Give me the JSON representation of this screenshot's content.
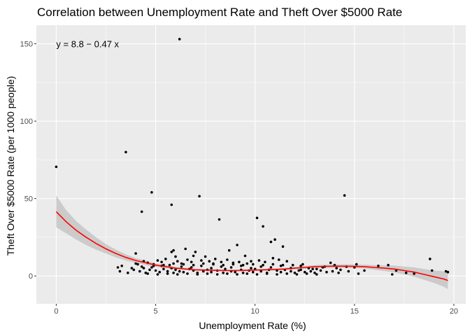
{
  "chart_data": {
    "type": "scatter",
    "title": "Correlation between Unemployment Rate and Theft Over $5000 Rate",
    "xlabel": "Unemployment Rate (%)",
    "ylabel": "Theft Over $5000 Rate (per 1000 people)",
    "xlim": [
      -1.0,
      20.6
    ],
    "ylim": [
      -18,
      162
    ],
    "x_ticks": [
      0,
      5,
      10,
      15,
      20
    ],
    "y_ticks": [
      0,
      50,
      100,
      150
    ],
    "grid": true,
    "legend": "none",
    "annotation": {
      "text": "y = 8.8 − 0.47 x",
      "x": 0,
      "y": 150
    },
    "colors": {
      "panel": "#ebebeb",
      "grid_major": "#ffffff",
      "points": "#000000",
      "smooth_line": "#ff0000",
      "ribbon": "#c0c0c0"
    },
    "smooth": {
      "x": [
        0,
        0.5,
        1,
        1.5,
        2,
        2.5,
        3,
        3.5,
        4,
        4.5,
        5,
        5.5,
        6,
        6.5,
        7,
        7.5,
        8,
        8.5,
        9,
        9.5,
        10,
        10.5,
        11,
        11.5,
        12,
        12.5,
        13,
        13.5,
        14,
        14.5,
        15,
        15.5,
        16,
        16.5,
        17,
        17.5,
        18,
        18.5,
        19,
        19.5,
        19.7
      ],
      "y": [
        41.5,
        35,
        29.5,
        25,
        21,
        17.5,
        14.5,
        12,
        10,
        8.5,
        7,
        6,
        5,
        4.5,
        4,
        3.8,
        3.6,
        3.5,
        3.5,
        3.6,
        3.8,
        4,
        4.2,
        4.5,
        5,
        5.5,
        6,
        6.2,
        6.3,
        6.3,
        6.2,
        6,
        5.5,
        5,
        4.5,
        3.5,
        2.5,
        1,
        -0.5,
        -2,
        -3
      ],
      "lower": [
        31.5,
        27.5,
        23.5,
        20,
        17,
        14.5,
        12,
        10,
        8.5,
        7,
        6,
        5,
        4.2,
        3.8,
        3.4,
        3.2,
        3,
        2.9,
        2.9,
        3,
        3.2,
        3.4,
        3.6,
        3.8,
        4.2,
        4.6,
        5,
        5.1,
        5.2,
        5.1,
        5,
        4.7,
        4,
        3.2,
        2.3,
        1,
        -0.5,
        -2.5,
        -4.5,
        -7,
        -8.5
      ],
      "upper": [
        52,
        42.5,
        35.5,
        30,
        25,
        20.5,
        17,
        14,
        11.5,
        10,
        8,
        7,
        5.8,
        5.2,
        4.6,
        4.4,
        4.2,
        4.1,
        4.1,
        4.2,
        4.4,
        4.6,
        4.8,
        5.2,
        5.8,
        6.4,
        7,
        7.3,
        7.4,
        7.5,
        7.4,
        7.3,
        7,
        6.8,
        6.7,
        6,
        5.5,
        4.5,
        3.5,
        3,
        2.5
      ]
    },
    "points": [
      [
        0.0,
        70.5
      ],
      [
        6.2,
        153.0
      ],
      [
        3.5,
        80.0
      ],
      [
        4.8,
        54.0
      ],
      [
        4.3,
        41.5
      ],
      [
        5.8,
        46.0
      ],
      [
        7.2,
        51.5
      ],
      [
        14.5,
        52.0
      ],
      [
        8.2,
        36.5
      ],
      [
        10.1,
        37.5
      ],
      [
        10.4,
        32.0
      ],
      [
        11.0,
        23.5
      ],
      [
        10.8,
        22.0
      ],
      [
        11.4,
        19.0
      ],
      [
        9.1,
        20.0
      ],
      [
        8.7,
        16.5
      ],
      [
        6.5,
        17.5
      ],
      [
        5.9,
        16.5
      ],
      [
        5.8,
        15.5
      ],
      [
        7.0,
        15.5
      ],
      [
        7.5,
        12.5
      ],
      [
        9.5,
        13.0
      ],
      [
        4.0,
        14.5
      ],
      [
        6.9,
        13.0
      ],
      [
        8.0,
        11.0
      ],
      [
        6.0,
        12.5
      ],
      [
        18.8,
        11.0
      ],
      [
        13.8,
        8.5
      ],
      [
        15.1,
        7.5
      ],
      [
        15.0,
        5.5
      ],
      [
        16.2,
        6.5
      ],
      [
        16.7,
        7.0
      ],
      [
        17.1,
        3.5
      ],
      [
        17.6,
        2.0
      ],
      [
        18.0,
        1.5
      ],
      [
        18.9,
        3.5
      ],
      [
        19.6,
        3.0
      ],
      [
        19.7,
        2.5
      ],
      [
        16.9,
        1.0
      ],
      [
        15.2,
        1.5
      ],
      [
        3.1,
        5.5
      ],
      [
        3.3,
        6.5
      ],
      [
        3.2,
        3.0
      ],
      [
        3.6,
        2.0
      ],
      [
        3.8,
        5.0
      ],
      [
        4.1,
        7.5
      ],
      [
        4.4,
        9.5
      ],
      [
        4.6,
        8.5
      ],
      [
        4.9,
        6.5
      ],
      [
        5.1,
        10.0
      ],
      [
        5.3,
        9.0
      ],
      [
        5.5,
        11.0
      ],
      [
        5.7,
        7.0
      ],
      [
        6.1,
        9.5
      ],
      [
        6.3,
        8.0
      ],
      [
        6.6,
        10.5
      ],
      [
        6.8,
        9.0
      ],
      [
        7.3,
        10.0
      ],
      [
        7.7,
        9.5
      ],
      [
        7.9,
        8.0
      ],
      [
        8.3,
        9.0
      ],
      [
        8.6,
        10.5
      ],
      [
        8.9,
        8.5
      ],
      [
        9.2,
        9.0
      ],
      [
        9.6,
        8.0
      ],
      [
        9.8,
        9.5
      ],
      [
        10.2,
        10.0
      ],
      [
        10.5,
        9.0
      ],
      [
        10.9,
        11.5
      ],
      [
        11.2,
        10.5
      ],
      [
        11.6,
        9.5
      ],
      [
        11.9,
        7.0
      ],
      [
        12.3,
        6.5
      ],
      [
        12.7,
        5.0
      ],
      [
        13.1,
        4.5
      ],
      [
        13.5,
        6.0
      ],
      [
        14.0,
        7.0
      ],
      [
        14.3,
        4.0
      ],
      [
        14.7,
        3.0
      ],
      [
        15.5,
        3.5
      ],
      [
        4.2,
        3.0
      ],
      [
        4.5,
        2.0
      ],
      [
        4.7,
        4.0
      ],
      [
        5.0,
        3.5
      ],
      [
        5.2,
        2.5
      ],
      [
        5.4,
        4.5
      ],
      [
        5.6,
        3.0
      ],
      [
        5.9,
        2.0
      ],
      [
        6.0,
        4.0
      ],
      [
        6.2,
        3.0
      ],
      [
        6.4,
        2.5
      ],
      [
        6.7,
        4.5
      ],
      [
        6.9,
        3.5
      ],
      [
        7.1,
        2.0
      ],
      [
        7.4,
        3.0
      ],
      [
        7.6,
        4.0
      ],
      [
        7.8,
        2.5
      ],
      [
        8.1,
        3.5
      ],
      [
        8.4,
        2.0
      ],
      [
        8.5,
        4.5
      ],
      [
        8.8,
        3.0
      ],
      [
        9.0,
        2.5
      ],
      [
        9.3,
        4.0
      ],
      [
        9.4,
        2.0
      ],
      [
        9.7,
        3.5
      ],
      [
        9.9,
        2.5
      ],
      [
        10.0,
        4.5
      ],
      [
        10.3,
        3.0
      ],
      [
        10.6,
        2.0
      ],
      [
        10.7,
        4.0
      ],
      [
        11.1,
        3.5
      ],
      [
        11.3,
        2.5
      ],
      [
        11.5,
        4.0
      ],
      [
        11.8,
        3.0
      ],
      [
        12.0,
        2.0
      ],
      [
        12.2,
        3.5
      ],
      [
        12.5,
        2.5
      ],
      [
        12.8,
        3.0
      ],
      [
        13.0,
        2.0
      ],
      [
        13.3,
        3.5
      ],
      [
        13.6,
        2.5
      ],
      [
        13.9,
        3.0
      ],
      [
        14.2,
        2.0
      ],
      [
        4.3,
        6.0
      ],
      [
        4.8,
        5.5
      ],
      [
        5.3,
        6.5
      ],
      [
        5.8,
        5.0
      ],
      [
        6.3,
        6.0
      ],
      [
        6.8,
        5.5
      ],
      [
        7.3,
        6.5
      ],
      [
        7.8,
        5.0
      ],
      [
        8.3,
        6.0
      ],
      [
        8.8,
        5.5
      ],
      [
        9.3,
        6.5
      ],
      [
        9.8,
        5.0
      ],
      [
        10.3,
        6.0
      ],
      [
        10.8,
        5.5
      ],
      [
        11.3,
        6.5
      ],
      [
        11.8,
        5.0
      ],
      [
        12.3,
        4.0
      ],
      [
        12.9,
        4.5
      ],
      [
        13.4,
        5.5
      ],
      [
        4.6,
        1.5
      ],
      [
        5.1,
        1.0
      ],
      [
        5.6,
        1.5
      ],
      [
        6.1,
        1.0
      ],
      [
        6.6,
        1.5
      ],
      [
        7.1,
        1.0
      ],
      [
        7.6,
        1.5
      ],
      [
        8.1,
        1.0
      ],
      [
        8.6,
        1.5
      ],
      [
        9.1,
        1.0
      ],
      [
        9.6,
        1.5
      ],
      [
        10.1,
        1.0
      ],
      [
        10.6,
        1.5
      ],
      [
        11.1,
        1.0
      ],
      [
        11.6,
        1.5
      ],
      [
        12.1,
        1.0
      ],
      [
        12.6,
        1.5
      ],
      [
        13.1,
        1.0
      ],
      [
        3.9,
        4.0
      ],
      [
        4.0,
        8.0
      ],
      [
        4.4,
        5.0
      ],
      [
        4.9,
        7.5
      ],
      [
        5.4,
        7.0
      ],
      [
        5.9,
        8.0
      ],
      [
        6.4,
        7.5
      ],
      [
        6.9,
        7.0
      ],
      [
        7.4,
        8.0
      ],
      [
        7.9,
        7.5
      ],
      [
        8.4,
        7.0
      ],
      [
        8.9,
        7.5
      ],
      [
        9.4,
        7.0
      ],
      [
        9.9,
        7.5
      ],
      [
        10.4,
        7.0
      ],
      [
        10.9,
        7.5
      ],
      [
        11.4,
        7.0
      ],
      [
        12.4,
        7.5
      ],
      [
        14.1,
        5.0
      ],
      [
        14.6,
        6.0
      ]
    ]
  }
}
